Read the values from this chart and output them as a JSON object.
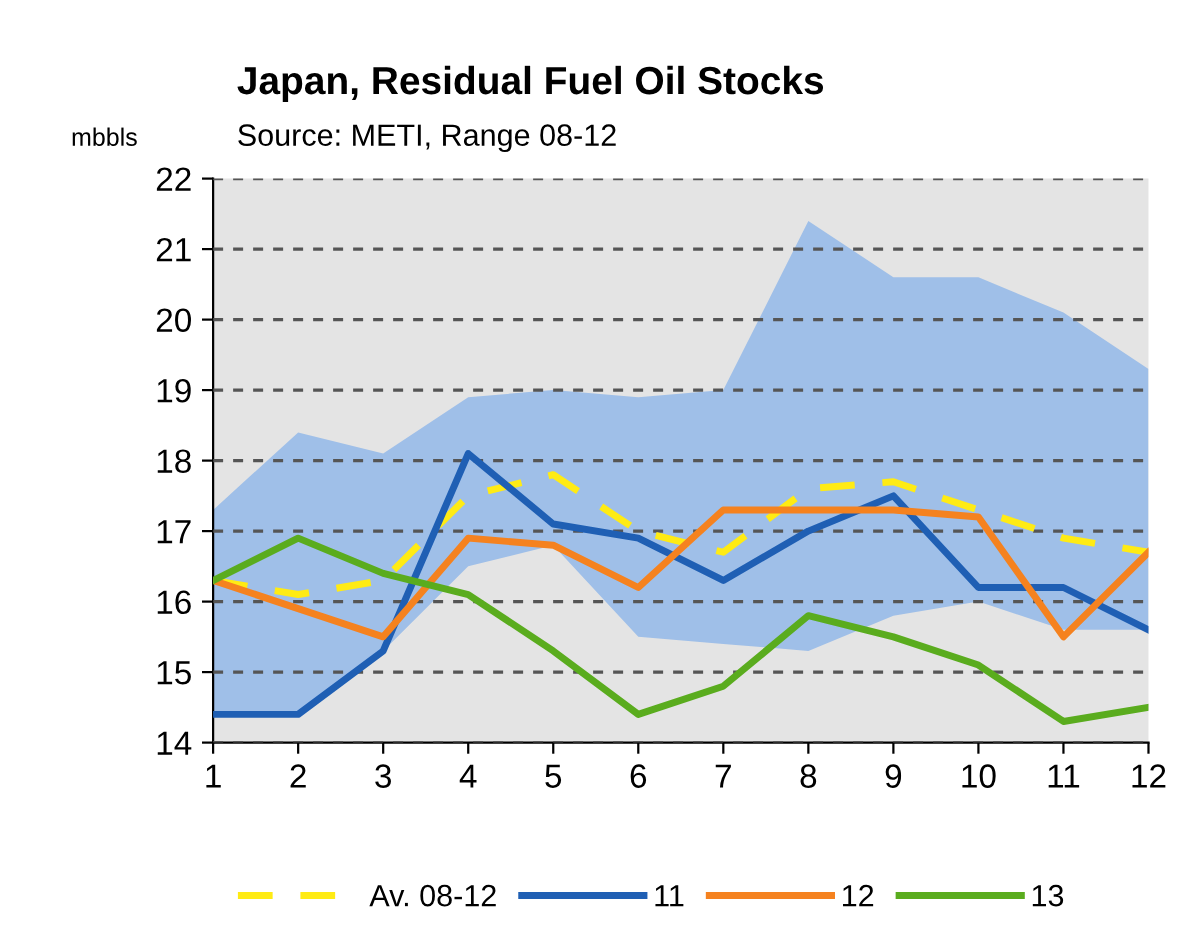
{
  "chart_data": {
    "type": "line",
    "title": "Japan, Residual Fuel Oil Stocks",
    "subtitle": "Source: METI, Range 08-12",
    "ylabel": "mbbls",
    "x": [
      1,
      2,
      3,
      4,
      5,
      6,
      7,
      8,
      9,
      10,
      11,
      12
    ],
    "xlim": [
      1,
      12
    ],
    "xticks": [
      1,
      2,
      3,
      4,
      5,
      6,
      7,
      8,
      9,
      10,
      11,
      12
    ],
    "ylim": [
      14,
      22
    ],
    "yticks": [
      14,
      15,
      16,
      17,
      18,
      19,
      20,
      21,
      22
    ],
    "grid": "y",
    "legend": "bottom",
    "marker": "none",
    "series": [
      {
        "name": "Av. 08-12",
        "color": "#ffeb14",
        "line_style": "dashed",
        "values": [
          16.3,
          16.1,
          16.3,
          17.5,
          17.8,
          17.0,
          16.7,
          17.6,
          17.7,
          17.3,
          16.9,
          16.7
        ],
        "lower": [
          14.4,
          14.4,
          15.3,
          16.5,
          16.8,
          15.5,
          15.4,
          15.3,
          15.8,
          16.0,
          15.6,
          15.6
        ],
        "upper": [
          17.3,
          18.4,
          18.1,
          18.9,
          19.0,
          18.9,
          19.0,
          21.4,
          20.6,
          20.6,
          20.1,
          19.3
        ]
      },
      {
        "name": "11",
        "color": "#1f5fb4",
        "line_style": "solid",
        "values": [
          14.4,
          14.4,
          15.3,
          18.1,
          17.1,
          16.9,
          16.3,
          17.0,
          17.5,
          16.2,
          16.2,
          15.6
        ]
      },
      {
        "name": "12",
        "color": "#f5821f",
        "line_style": "solid",
        "values": [
          16.3,
          15.9,
          15.5,
          16.9,
          16.8,
          16.2,
          17.3,
          17.3,
          17.3,
          17.2,
          15.5,
          16.7
        ]
      },
      {
        "name": "13",
        "color": "#5aac1e",
        "line_style": "solid",
        "values": [
          16.3,
          16.9,
          16.4,
          16.1,
          15.3,
          14.4,
          14.8,
          15.8,
          15.5,
          15.1,
          14.3,
          14.5
        ]
      }
    ]
  }
}
